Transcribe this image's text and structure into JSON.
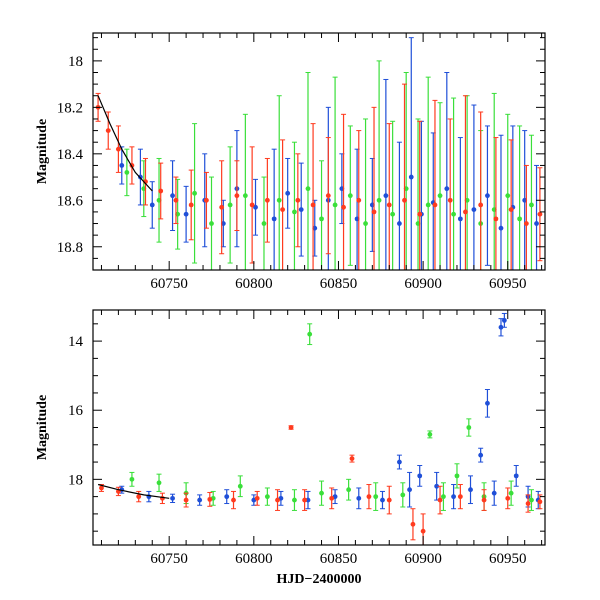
{
  "chart_data": [
    {
      "type": "scatter",
      "panel": "top",
      "title": "",
      "xlabel": "",
      "ylabel": "Magnitude",
      "xlim": [
        60705,
        60972
      ],
      "ylim": [
        18.9,
        17.88
      ],
      "y_inverted": true,
      "x_ticks_major": [
        60750,
        60800,
        60850,
        60900,
        60950
      ],
      "y_ticks_major": [
        18.0,
        18.2,
        18.4,
        18.6,
        18.8
      ],
      "x_tick_labels": [
        "60750",
        "60800",
        "60850",
        "60900",
        "60950"
      ],
      "y_tick_labels": [
        "18",
        "18.2",
        "18.4",
        "18.6",
        "18.8"
      ],
      "series": [
        {
          "name": "blue",
          "color": "#1f4fd8",
          "x": [
            60722,
            60733,
            60740,
            60752,
            60760,
            60771,
            60782,
            60790,
            60801,
            60812,
            60820,
            60828,
            60836,
            60844,
            60852,
            60861,
            60870,
            60878,
            60886,
            60893,
            60899,
            60906,
            60914,
            60922,
            60930,
            60938,
            60946,
            60953,
            60960,
            60967
          ],
          "y": [
            18.45,
            18.5,
            18.62,
            18.58,
            18.66,
            18.6,
            18.7,
            18.55,
            18.63,
            18.68,
            18.57,
            18.64,
            18.72,
            18.6,
            18.55,
            18.68,
            18.62,
            18.58,
            18.7,
            18.5,
            18.66,
            18.61,
            18.55,
            18.68,
            18.64,
            18.58,
            18.72,
            18.63,
            18.6,
            18.7
          ],
          "err": [
            0.08,
            0.12,
            0.1,
            0.15,
            0.12,
            0.2,
            0.1,
            0.25,
            0.12,
            0.3,
            0.15,
            0.2,
            0.12,
            0.4,
            0.15,
            0.3,
            0.2,
            0.5,
            0.35,
            0.6,
            0.4,
            0.3,
            0.5,
            0.35,
            0.45,
            0.3,
            0.4,
            0.35,
            0.3,
            0.25
          ]
        },
        {
          "name": "green",
          "color": "#3adf3a",
          "x": [
            60725,
            60735,
            60744,
            60755,
            60765,
            60775,
            60786,
            60795,
            60806,
            60815,
            60824,
            60832,
            60840,
            60848,
            60857,
            60866,
            60874,
            60882,
            60890,
            60897,
            60903,
            60910,
            60918,
            60926,
            60934,
            60942,
            60950,
            60957,
            60964
          ],
          "y": [
            18.48,
            18.55,
            18.6,
            18.66,
            18.57,
            18.7,
            18.62,
            18.58,
            18.7,
            18.6,
            18.65,
            18.55,
            18.68,
            18.62,
            18.58,
            18.7,
            18.6,
            18.66,
            18.55,
            18.7,
            18.62,
            18.58,
            18.66,
            18.6,
            18.7,
            18.64,
            18.58,
            18.68,
            18.62
          ],
          "err": [
            0.1,
            0.12,
            0.18,
            0.15,
            0.3,
            0.2,
            0.25,
            0.35,
            0.2,
            0.45,
            0.3,
            0.5,
            0.25,
            0.55,
            0.3,
            0.45,
            0.6,
            0.4,
            0.5,
            0.45,
            0.55,
            0.4,
            0.5,
            0.45,
            0.4,
            0.5,
            0.35,
            0.4,
            0.3
          ]
        },
        {
          "name": "red",
          "color": "#ff3b1f",
          "x": [
            60708,
            60714,
            60720,
            60728,
            60736,
            60745,
            60754,
            60763,
            60772,
            60781,
            60790,
            60799,
            60808,
            60817,
            60826,
            60835,
            60844,
            60853,
            60862,
            60871,
            60880,
            60889,
            60898,
            60907,
            60916,
            60925,
            60934,
            60943,
            60952,
            60961,
            60969
          ],
          "y": [
            18.2,
            18.3,
            18.38,
            18.45,
            18.52,
            18.56,
            18.6,
            18.62,
            18.6,
            18.63,
            18.58,
            18.62,
            18.6,
            18.64,
            18.6,
            18.62,
            18.58,
            18.63,
            18.6,
            18.65,
            18.62,
            18.6,
            18.66,
            18.62,
            18.6,
            18.65,
            18.62,
            18.68,
            18.64,
            18.7,
            18.66
          ],
          "err": [
            0.06,
            0.08,
            0.1,
            0.08,
            0.1,
            0.12,
            0.1,
            0.15,
            0.12,
            0.2,
            0.15,
            0.25,
            0.18,
            0.3,
            0.2,
            0.35,
            0.25,
            0.4,
            0.3,
            0.45,
            0.35,
            0.5,
            0.4,
            0.45,
            0.35,
            0.5,
            0.4,
            0.35,
            0.3,
            0.25,
            0.2
          ]
        }
      ],
      "model_curve": {
        "name": "fit",
        "color": "#000000",
        "x": [
          60708,
          60715,
          60722,
          60730,
          60740
        ],
        "y": [
          18.15,
          18.27,
          18.38,
          18.48,
          18.56
        ]
      }
    },
    {
      "type": "scatter",
      "panel": "bottom",
      "title": "",
      "xlabel": "HJD−2400000",
      "ylabel": "Magnitude",
      "xlim": [
        60705,
        60972
      ],
      "ylim": [
        19.9,
        13.1
      ],
      "y_inverted": true,
      "x_ticks_major": [
        60750,
        60800,
        60850,
        60900,
        60950
      ],
      "y_ticks_major": [
        14,
        16,
        18
      ],
      "x_tick_labels": [
        "60750",
        "60800",
        "60850",
        "60900",
        "60950"
      ],
      "y_tick_labels": [
        "14",
        "16",
        "18"
      ],
      "series": [
        {
          "name": "blue",
          "color": "#1f4fd8",
          "x": [
            60722,
            60738,
            60752,
            60768,
            60784,
            60800,
            60816,
            60832,
            60848,
            60862,
            60876,
            60886,
            60892,
            60898,
            60908,
            60918,
            60928,
            60934,
            60938,
            60942,
            60946,
            60948,
            60955,
            60962,
            60968
          ],
          "y": [
            18.3,
            18.5,
            18.55,
            18.6,
            18.5,
            18.6,
            18.55,
            18.6,
            18.5,
            18.55,
            18.6,
            17.5,
            18.3,
            17.9,
            18.2,
            18.5,
            18.3,
            17.3,
            15.8,
            18.4,
            13.6,
            13.4,
            17.9,
            18.5,
            18.6
          ],
          "err": [
            0.1,
            0.15,
            0.12,
            0.15,
            0.2,
            0.15,
            0.2,
            0.25,
            0.2,
            0.3,
            0.25,
            0.2,
            0.5,
            0.3,
            0.4,
            0.35,
            0.4,
            0.2,
            0.4,
            0.35,
            0.25,
            0.2,
            0.3,
            0.3,
            0.25
          ]
        },
        {
          "name": "green",
          "color": "#3adf3a",
          "x": [
            60728,
            60744,
            60760,
            60776,
            60792,
            60808,
            60824,
            60833,
            60840,
            60856,
            60872,
            60888,
            60904,
            60912,
            60920,
            60927,
            60936,
            60952,
            60964
          ],
          "y": [
            18.0,
            18.1,
            18.4,
            18.55,
            18.2,
            18.5,
            18.6,
            13.8,
            18.4,
            18.3,
            18.5,
            18.45,
            16.7,
            18.5,
            17.9,
            16.5,
            18.5,
            18.4,
            18.6
          ],
          "err": [
            0.2,
            0.25,
            0.3,
            0.2,
            0.3,
            0.25,
            0.3,
            0.3,
            0.35,
            0.3,
            0.4,
            0.35,
            0.1,
            0.4,
            0.35,
            0.25,
            0.4,
            0.35,
            0.3
          ]
        },
        {
          "name": "red",
          "color": "#ff3b1f",
          "x": [
            60710,
            60720,
            60732,
            60746,
            60760,
            60774,
            60788,
            60802,
            60814,
            60822,
            60830,
            60846,
            60858,
            60868,
            60880,
            60894,
            60900,
            60910,
            60922,
            60936,
            60950,
            60962,
            60969
          ],
          "y": [
            18.25,
            18.35,
            18.5,
            18.55,
            18.6,
            18.58,
            18.6,
            18.55,
            18.6,
            16.5,
            18.6,
            18.55,
            17.4,
            18.5,
            18.6,
            19.3,
            19.5,
            18.6,
            18.5,
            18.6,
            18.55,
            18.7,
            18.65
          ],
          "err": [
            0.1,
            0.12,
            0.15,
            0.15,
            0.2,
            0.2,
            0.25,
            0.2,
            0.3,
            0.05,
            0.3,
            0.3,
            0.1,
            0.35,
            0.4,
            0.45,
            0.5,
            0.4,
            0.35,
            0.3,
            0.3,
            0.25,
            0.2
          ]
        }
      ],
      "model_curve": {
        "name": "fit",
        "color": "#000000",
        "x": [
          60708,
          60720,
          60735,
          60750
        ],
        "y": [
          18.15,
          18.3,
          18.45,
          18.55
        ]
      }
    }
  ]
}
